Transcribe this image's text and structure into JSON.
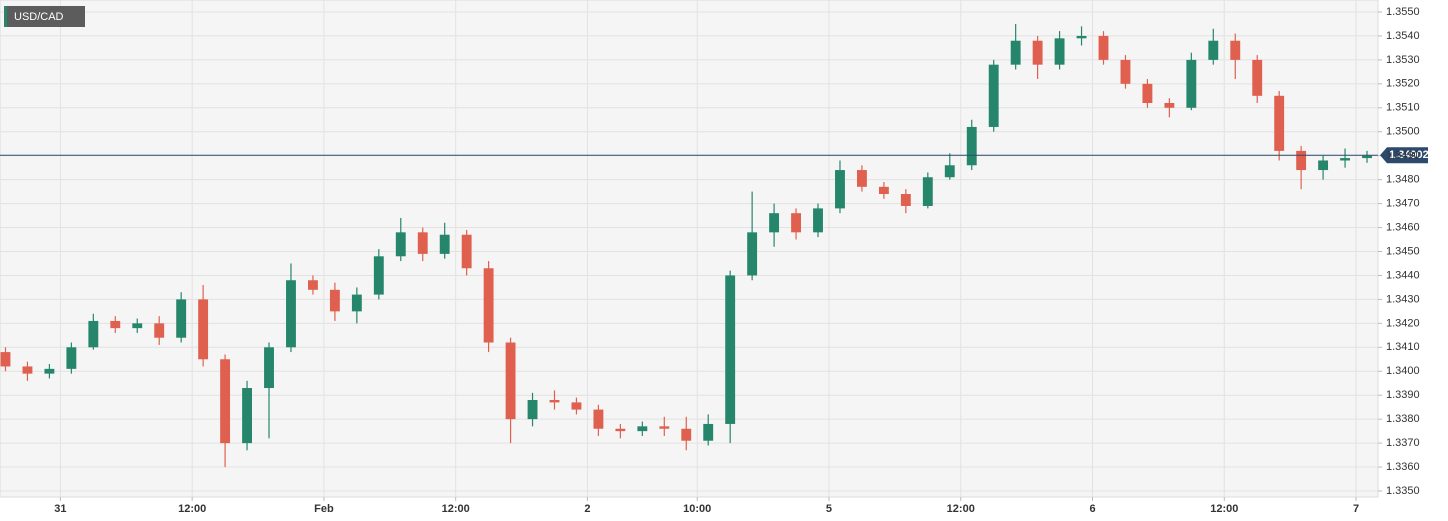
{
  "chart_data": {
    "type": "candlestick",
    "legend": "USD/CAD",
    "last_price": 1.34902,
    "up_color": "#26866b",
    "down_color": "#e0604f",
    "line_color": "#2c4a6b",
    "grid": true,
    "xlim": [
      -5.5,
      120
    ],
    "ylim": [
      1.33475,
      1.3555
    ],
    "xticks": [
      {
        "value": 0,
        "label": "31"
      },
      {
        "value": 12,
        "label": "12:00"
      },
      {
        "value": 24,
        "label": "Feb"
      },
      {
        "value": 36,
        "label": "12:00"
      },
      {
        "value": 48,
        "label": "2"
      },
      {
        "value": 58,
        "label": "10:00"
      },
      {
        "value": 70,
        "label": "5"
      },
      {
        "value": 82,
        "label": "12:00"
      },
      {
        "value": 94,
        "label": "6"
      },
      {
        "value": 106,
        "label": "12:00"
      },
      {
        "value": 118,
        "label": "7"
      }
    ],
    "yticks": [
      {
        "value": 1.335,
        "label": "1.3350"
      },
      {
        "value": 1.336,
        "label": "1.3360"
      },
      {
        "value": 1.337,
        "label": "1.3370"
      },
      {
        "value": 1.338,
        "label": "1.3380"
      },
      {
        "value": 1.339,
        "label": "1.3390"
      },
      {
        "value": 1.34,
        "label": "1.3400"
      },
      {
        "value": 1.341,
        "label": "1.3410"
      },
      {
        "value": 1.342,
        "label": "1.3420"
      },
      {
        "value": 1.343,
        "label": "1.3430"
      },
      {
        "value": 1.344,
        "label": "1.3440"
      },
      {
        "value": 1.345,
        "label": "1.3450"
      },
      {
        "value": 1.346,
        "label": "1.3460"
      },
      {
        "value": 1.347,
        "label": "1.3470"
      },
      {
        "value": 1.348,
        "label": "1.3480"
      },
      {
        "value": 1.349,
        "label": "1.3490"
      },
      {
        "value": 1.35,
        "label": "1.3500"
      },
      {
        "value": 1.351,
        "label": "1.3510"
      },
      {
        "value": 1.352,
        "label": "1.3520"
      },
      {
        "value": 1.353,
        "label": "1.3530"
      },
      {
        "value": 1.354,
        "label": "1.3540"
      },
      {
        "value": 1.355,
        "label": "1.3550"
      }
    ],
    "x": [
      -5,
      -3,
      -1,
      1,
      3,
      5,
      7,
      9,
      11,
      13,
      15,
      17,
      19,
      21,
      23,
      25,
      27,
      29,
      31,
      33,
      35,
      37,
      39,
      41,
      43,
      45,
      47,
      49,
      51,
      53,
      55,
      57,
      59,
      61,
      63,
      65,
      67,
      69,
      71,
      73,
      75,
      77,
      79,
      81,
      83,
      85,
      87,
      89,
      91,
      93,
      95,
      97,
      99,
      101,
      103,
      105,
      107,
      109,
      111,
      113,
      115,
      117,
      119
    ],
    "open": [
      1.3408,
      1.3402,
      1.3399,
      1.3401,
      1.341,
      1.3421,
      1.3418,
      1.342,
      1.3414,
      1.343,
      1.3405,
      1.337,
      1.3393,
      1.341,
      1.3438,
      1.3434,
      1.3425,
      1.3432,
      1.3448,
      1.3458,
      1.3449,
      1.3457,
      1.3443,
      1.3412,
      1.338,
      1.3388,
      1.3387,
      1.3384,
      1.3376,
      1.3375,
      1.3377,
      1.3376,
      1.3371,
      1.3378,
      1.344,
      1.3458,
      1.3466,
      1.3458,
      1.3468,
      1.3484,
      1.3477,
      1.3474,
      1.3469,
      1.3481,
      1.3486,
      1.3502,
      1.3528,
      1.3538,
      1.3528,
      1.3539,
      1.354,
      1.353,
      1.352,
      1.3512,
      1.351,
      1.353,
      1.3538,
      1.353,
      1.3515,
      1.3492,
      1.3484,
      1.3488,
      1.3489
    ],
    "high": [
      1.341,
      1.3404,
      1.3403,
      1.3412,
      1.3424,
      1.3423,
      1.3422,
      1.3423,
      1.3433,
      1.3436,
      1.3407,
      1.3396,
      1.3412,
      1.3445,
      1.344,
      1.3437,
      1.3435,
      1.3451,
      1.3464,
      1.346,
      1.3462,
      1.3459,
      1.3446,
      1.3414,
      1.3391,
      1.3392,
      1.3389,
      1.3386,
      1.3378,
      1.3379,
      1.3381,
      1.3381,
      1.3382,
      1.3442,
      1.3475,
      1.347,
      1.3468,
      1.347,
      1.3488,
      1.3486,
      1.3479,
      1.3476,
      1.3483,
      1.3491,
      1.3505,
      1.353,
      1.3545,
      1.354,
      1.3542,
      1.3544,
      1.3542,
      1.3532,
      1.3522,
      1.3514,
      1.3533,
      1.3543,
      1.3541,
      1.3532,
      1.3517,
      1.3494,
      1.349,
      1.3493,
      1.3492
    ],
    "low": [
      1.34,
      1.3396,
      1.3397,
      1.3399,
      1.3409,
      1.3416,
      1.3416,
      1.3411,
      1.3412,
      1.3402,
      1.336,
      1.3367,
      1.3372,
      1.3408,
      1.3432,
      1.3421,
      1.342,
      1.343,
      1.3446,
      1.3446,
      1.3447,
      1.344,
      1.3408,
      1.337,
      1.3377,
      1.3384,
      1.3382,
      1.3373,
      1.3372,
      1.3373,
      1.3373,
      1.3367,
      1.3369,
      1.337,
      1.3438,
      1.3452,
      1.3455,
      1.3456,
      1.3466,
      1.3475,
      1.3472,
      1.3466,
      1.3468,
      1.348,
      1.3484,
      1.35,
      1.3526,
      1.3522,
      1.3526,
      1.3536,
      1.3528,
      1.3518,
      1.351,
      1.3506,
      1.3509,
      1.3528,
      1.3522,
      1.3512,
      1.3488,
      1.3476,
      1.348,
      1.3485,
      1.3487
    ],
    "close": [
      1.3402,
      1.3399,
      1.3401,
      1.341,
      1.3421,
      1.3418,
      1.342,
      1.3414,
      1.343,
      1.3405,
      1.337,
      1.3393,
      1.341,
      1.3438,
      1.3434,
      1.3425,
      1.3432,
      1.3448,
      1.3458,
      1.3449,
      1.3457,
      1.3443,
      1.3412,
      1.338,
      1.3388,
      1.3387,
      1.3384,
      1.3376,
      1.3375,
      1.3377,
      1.3376,
      1.3371,
      1.3378,
      1.344,
      1.3458,
      1.3466,
      1.3458,
      1.3468,
      1.3484,
      1.3477,
      1.3474,
      1.3469,
      1.3481,
      1.3486,
      1.3502,
      1.3528,
      1.3538,
      1.3528,
      1.3539,
      1.354,
      1.353,
      1.352,
      1.3512,
      1.351,
      1.353,
      1.3538,
      1.353,
      1.3515,
      1.3492,
      1.3484,
      1.3488,
      1.3489,
      1.349
    ]
  }
}
